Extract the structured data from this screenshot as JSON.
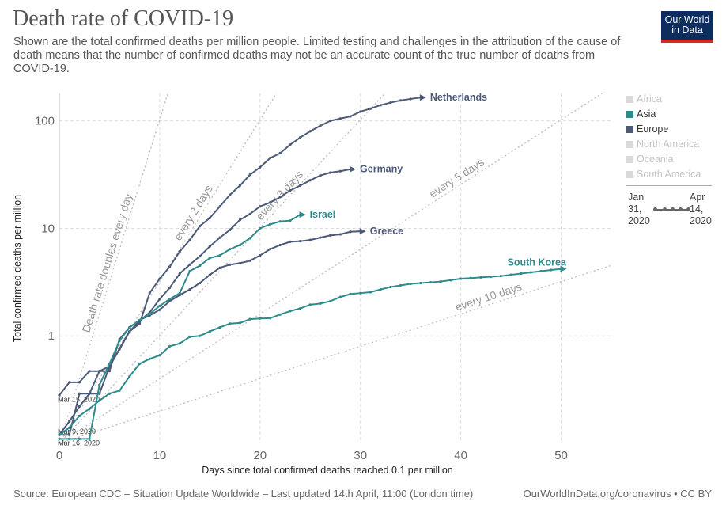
{
  "header": {
    "title": "Death rate of COVID-19",
    "subtitle": "Shown are the total confirmed deaths per million people. Limited testing and challenges in the attribution of the cause of death means that the number of confirmed deaths may not be an accurate count of the true number of deaths from COVID-19.",
    "logo_line1": "Our World",
    "logo_line2": "in Data"
  },
  "legend": {
    "items": [
      {
        "label": "Africa",
        "color": "#d9d9d9",
        "active": false
      },
      {
        "label": "Asia",
        "color": "#2f8b8b",
        "active": true
      },
      {
        "label": "Europe",
        "color": "#4c5a78",
        "active": true
      },
      {
        "label": "North America",
        "color": "#d9d9d9",
        "active": false
      },
      {
        "label": "Oceania",
        "color": "#d9d9d9",
        "active": false
      },
      {
        "label": "South America",
        "color": "#d9d9d9",
        "active": false
      }
    ]
  },
  "timeline": {
    "start": "Jan\n31,\n2020",
    "end": "Apr\n14,\n2020"
  },
  "footer": {
    "source": "Source: European CDC – Situation Update Worldwide – Last updated 14th April, 11:00 (London time)",
    "credit": "OurWorldInData.org/coronavirus • CC BY"
  },
  "chart_data": {
    "type": "line",
    "title": "Death rate of COVID-19",
    "xlabel": "Days since total confirmed deaths reached 0.1 per million",
    "ylabel": "Total confirmed deaths per million",
    "y_scale": "log",
    "xlim": [
      0,
      55
    ],
    "ylim": [
      0.1,
      180
    ],
    "x_ticks": [
      0,
      10,
      20,
      30,
      40,
      50
    ],
    "y_ticks": [
      {
        "value": 1,
        "label": "1"
      },
      {
        "value": 10,
        "label": "10"
      },
      {
        "value": 100,
        "label": "100"
      }
    ],
    "grid": true,
    "guides": [
      {
        "label": "Death rate doubles every day",
        "doubling_days": 1
      },
      {
        "label": "every 2 days",
        "doubling_days": 2
      },
      {
        "label": "every 3 days",
        "doubling_days": 3
      },
      {
        "label": "every 5 days",
        "doubling_days": 5
      },
      {
        "label": "every 10 days",
        "doubling_days": 10
      }
    ],
    "start_labels": [
      {
        "text": "Mar 15, 2020",
        "x": 0,
        "y": 0.28
      },
      {
        "text": "Mar 9, 2020",
        "x": 0,
        "y": 0.14
      },
      {
        "text": "Mar 16, 2020",
        "x": 0,
        "y": 0.11
      }
    ],
    "series": [
      {
        "name": "Netherlands",
        "continent": "Europe",
        "color": "#4c5a78",
        "x": [
          0,
          1,
          2,
          3,
          4,
          5,
          6,
          7,
          8,
          9,
          10,
          11,
          12,
          13,
          14,
          15,
          16,
          17,
          18,
          19,
          20,
          21,
          22,
          23,
          24,
          25,
          26,
          27,
          28,
          29,
          30,
          31,
          32,
          33,
          34,
          35,
          36
        ],
        "y": [
          0.12,
          0.12,
          0.29,
          0.29,
          0.47,
          0.52,
          0.76,
          1.1,
          1.3,
          2.5,
          3.4,
          4.4,
          6.1,
          7.8,
          10.5,
          12.5,
          16,
          20.5,
          25,
          31.5,
          37,
          45,
          50,
          60,
          70,
          80,
          90,
          100,
          105,
          110,
          122,
          130,
          140,
          148,
          155,
          160,
          165
        ]
      },
      {
        "name": "Germany",
        "continent": "Europe",
        "color": "#4c5a78",
        "x": [
          0,
          1,
          2,
          3,
          4,
          5,
          6,
          7,
          8,
          9,
          10,
          11,
          12,
          13,
          14,
          15,
          16,
          17,
          18,
          19,
          20,
          21,
          22,
          23,
          24,
          25,
          26,
          27,
          28,
          29
        ],
        "y": [
          0.12,
          0.16,
          0.22,
          0.29,
          0.29,
          0.52,
          0.75,
          1.1,
          1.38,
          1.65,
          2.2,
          2.8,
          3.8,
          4.6,
          5.5,
          6.8,
          8.2,
          9.7,
          12,
          13.6,
          16,
          17.4,
          19.5,
          22.5,
          25,
          28,
          31,
          33,
          34,
          35.5
        ]
      },
      {
        "name": "Greece",
        "continent": "Europe",
        "color": "#4c5a78",
        "x": [
          0,
          1,
          2,
          3,
          4,
          5,
          6,
          7,
          8,
          9,
          10,
          11,
          12,
          13,
          14,
          15,
          16,
          17,
          18,
          19,
          20,
          21,
          22,
          23,
          24,
          25,
          26,
          27,
          28,
          29,
          30
        ],
        "y": [
          0.28,
          0.37,
          0.37,
          0.47,
          0.47,
          0.47,
          0.93,
          1.2,
          1.4,
          1.55,
          1.75,
          2.1,
          2.4,
          2.7,
          3.1,
          3.7,
          4.3,
          4.6,
          4.75,
          5,
          5.6,
          6.4,
          7,
          7.5,
          7.6,
          7.8,
          8.2,
          8.6,
          8.8,
          9.3,
          9.4
        ]
      },
      {
        "name": "Israel",
        "continent": "Asia",
        "color": "#2f8b8b",
        "x": [
          0,
          1,
          2,
          3,
          4,
          5,
          6,
          7,
          8,
          9,
          10,
          11,
          12,
          13,
          14,
          15,
          16,
          17,
          18,
          19,
          20,
          21,
          22,
          23,
          24
        ],
        "y": [
          0.11,
          0.11,
          0.11,
          0.11,
          0.35,
          0.55,
          0.9,
          1.2,
          1.4,
          1.6,
          1.9,
          2.2,
          2.5,
          4,
          4.5,
          5.3,
          5.6,
          6.4,
          7,
          8.1,
          10,
          10.9,
          11.6,
          11.8,
          13.4
        ]
      },
      {
        "name": "South Korea",
        "continent": "Asia",
        "color": "#2f8b8b",
        "x": [
          0,
          1,
          2,
          3,
          4,
          5,
          6,
          7,
          8,
          9,
          10,
          11,
          12,
          13,
          14,
          15,
          16,
          17,
          18,
          19,
          20,
          21,
          22,
          23,
          24,
          25,
          26,
          27,
          28,
          29,
          30,
          31,
          32,
          33,
          34,
          35,
          36,
          37,
          38,
          39,
          40,
          41,
          42,
          43,
          44,
          45,
          46,
          47,
          48,
          49,
          50
        ],
        "y": [
          0.12,
          0.14,
          0.18,
          0.21,
          0.25,
          0.29,
          0.31,
          0.42,
          0.55,
          0.61,
          0.66,
          0.8,
          0.85,
          0.98,
          1,
          1.1,
          1.2,
          1.3,
          1.32,
          1.43,
          1.45,
          1.46,
          1.58,
          1.7,
          1.8,
          1.95,
          2,
          2.1,
          2.3,
          2.45,
          2.5,
          2.55,
          2.7,
          2.85,
          2.95,
          3.05,
          3.1,
          3.15,
          3.2,
          3.3,
          3.4,
          3.45,
          3.5,
          3.55,
          3.6,
          3.7,
          3.8,
          3.9,
          4,
          4.1,
          4.2
        ]
      }
    ]
  }
}
